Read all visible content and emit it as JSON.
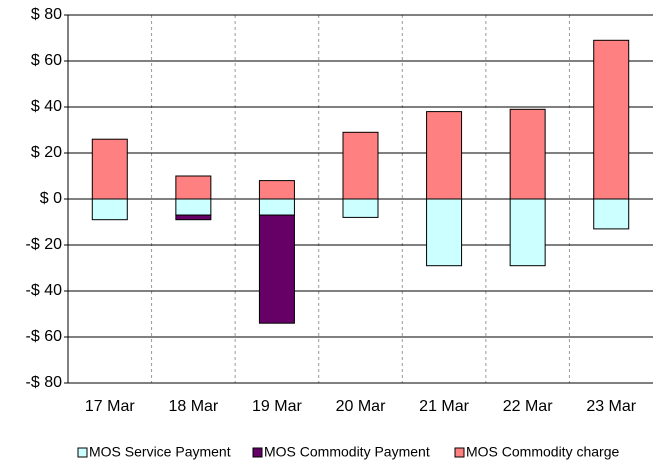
{
  "chart_data": {
    "type": "stacked-bar",
    "categories": [
      "17 Mar",
      "18 Mar",
      "19 Mar",
      "20 Mar",
      "21 Mar",
      "22 Mar",
      "23 Mar"
    ],
    "series": [
      {
        "name": "MOS Service Payment",
        "color": "#ccffff",
        "values": [
          -9,
          -7,
          -7,
          -8,
          -29,
          -29,
          -13
        ]
      },
      {
        "name": "MOS Commodity Payment",
        "color": "#660066",
        "values": [
          0,
          -2,
          -47,
          0,
          0,
          0,
          0
        ]
      },
      {
        "name": "MOS Commodity charge",
        "color": "#ff8080",
        "values": [
          26,
          10,
          8,
          29,
          38,
          39,
          69
        ]
      }
    ],
    "ylim": [
      -80,
      80
    ],
    "yticks": [
      {
        "value": -80,
        "label": "-$ 80"
      },
      {
        "value": -60,
        "label": "-$ 60"
      },
      {
        "value": -40,
        "label": "-$ 40"
      },
      {
        "value": -20,
        "label": "-$ 20"
      },
      {
        "value": 0,
        "label": "$ 0"
      },
      {
        "value": 20,
        "label": "$ 20"
      },
      {
        "value": 40,
        "label": "$ 40"
      },
      {
        "value": 60,
        "label": "$ 60"
      },
      {
        "value": 80,
        "label": "$ 80"
      }
    ],
    "grid": true,
    "legend": "bottom"
  }
}
